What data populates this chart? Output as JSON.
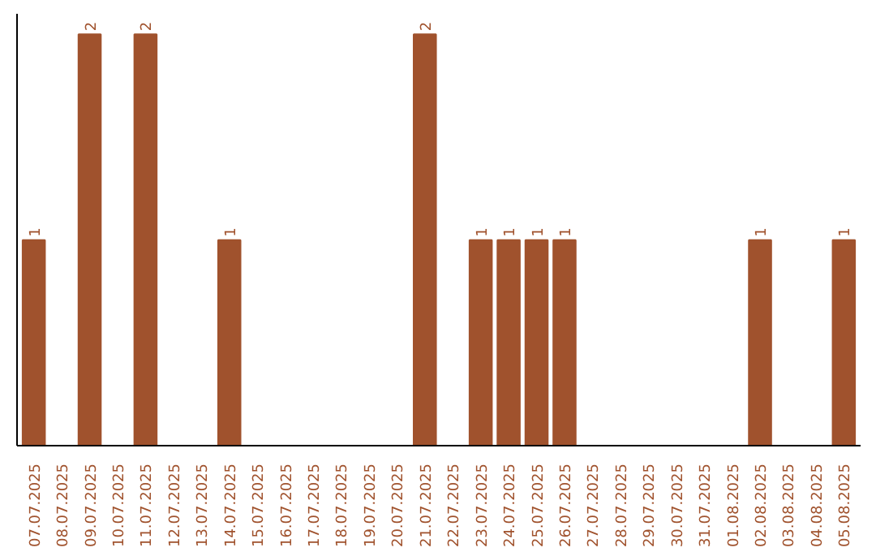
{
  "chart_data": {
    "type": "bar",
    "categories": [
      "07.07.2025",
      "08.07.2025",
      "09.07.2025",
      "10.07.2025",
      "11.07.2025",
      "12.07.2025",
      "13.07.2025",
      "14.07.2025",
      "15.07.2025",
      "16.07.2025",
      "17.07.2025",
      "18.07.2025",
      "19.07.2025",
      "20.07.2025",
      "21.07.2025",
      "22.07.2025",
      "23.07.2025",
      "24.07.2025",
      "25.07.2025",
      "26.07.2025",
      "27.07.2025",
      "28.07.2025",
      "29.07.2025",
      "30.07.2025",
      "31.07.2025",
      "01.08.2025",
      "02.08.2025",
      "03.08.2025",
      "04.08.2025",
      "05.08.2025"
    ],
    "values": [
      1,
      0,
      2,
      0,
      2,
      0,
      0,
      1,
      0,
      0,
      0,
      0,
      0,
      0,
      2,
      0,
      1,
      1,
      1,
      1,
      0,
      0,
      0,
      0,
      0,
      0,
      1,
      0,
      0,
      1
    ],
    "value_labels": [
      "1",
      null,
      "2",
      null,
      "2",
      null,
      null,
      "1",
      null,
      null,
      null,
      null,
      null,
      null,
      "2",
      null,
      "1",
      "1",
      "1",
      "1",
      null,
      null,
      null,
      null,
      null,
      null,
      "1",
      null,
      null,
      "1"
    ],
    "color": "#a0522d",
    "grid": false,
    "tick_labels": "x"
  }
}
